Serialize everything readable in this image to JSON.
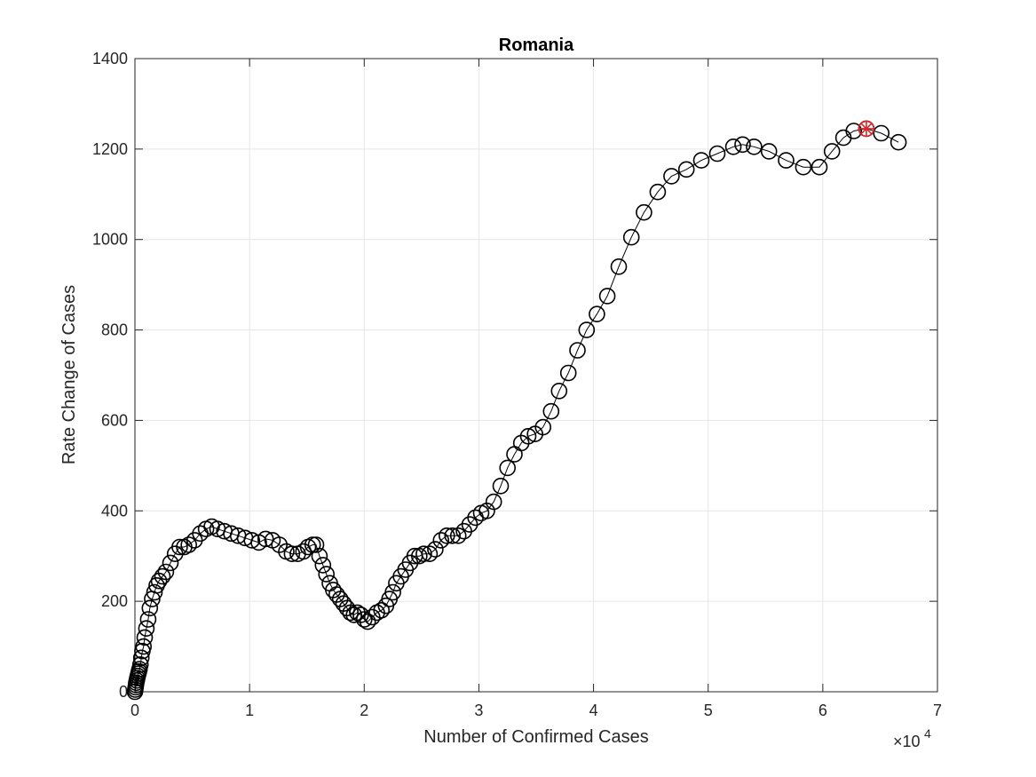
{
  "chart_data": {
    "type": "scatter",
    "title": "Romania",
    "xlabel": "Number of Confirmed Cases",
    "ylabel": "Rate Change of Cases",
    "x_multiplier": "×10",
    "x_multiplier_exp": "4",
    "xlim": [
      0,
      70000
    ],
    "ylim": [
      0,
      1400
    ],
    "xticks": [
      0,
      10000,
      20000,
      30000,
      40000,
      50000,
      60000,
      70000
    ],
    "xtick_labels": [
      "0",
      "1",
      "2",
      "3",
      "4",
      "5",
      "6",
      "7"
    ],
    "yticks": [
      0,
      200,
      400,
      600,
      800,
      1000,
      1200,
      1400
    ],
    "ytick_labels": [
      "0",
      "200",
      "400",
      "600",
      "800",
      "1000",
      "1200",
      "1400"
    ],
    "grid": true,
    "colors": {
      "series": "#000000",
      "highlight": "#d62728"
    },
    "series": [
      {
        "marker": "circle",
        "line": true,
        "x": [
          0,
          30,
          60,
          90,
          120,
          160,
          200,
          250,
          300,
          350,
          400,
          480,
          560,
          650,
          750,
          850,
          1000,
          1150,
          1300,
          1500,
          1700,
          1900,
          2100,
          2400,
          2700,
          3100,
          3500,
          3900,
          4300,
          4700,
          5200,
          5700,
          6200,
          6700,
          7200,
          7800,
          8400,
          9000,
          9600,
          10200,
          10800,
          11400,
          12000,
          12600,
          13200,
          13700,
          14200,
          14700,
          15100,
          15500,
          15800,
          16100,
          16400,
          16700,
          17000,
          17300,
          17600,
          17900,
          18200,
          18500,
          18800,
          19100,
          19400,
          19700,
          20000,
          20300,
          20700,
          21100,
          21500,
          21900,
          22200,
          22500,
          22800,
          23200,
          23600,
          24000,
          24400,
          24800,
          25200,
          25700,
          26200,
          26700,
          27200,
          27700,
          28200,
          28700,
          29200,
          29700,
          30200,
          30700,
          31300,
          31900,
          32500,
          33100,
          33700,
          34300,
          34900,
          35600,
          36300,
          37000,
          37800,
          38600,
          39400,
          40300,
          41200,
          42200,
          43300,
          44400,
          45600,
          46800,
          48100,
          49400,
          50800,
          52200,
          53000,
          54000,
          55300,
          56800,
          58300,
          59700,
          60800,
          61800,
          62700,
          63800,
          65100,
          66600
        ],
        "y": [
          0,
          5,
          10,
          15,
          20,
          25,
          30,
          35,
          40,
          45,
          50,
          60,
          75,
          90,
          100,
          120,
          140,
          160,
          185,
          205,
          220,
          235,
          245,
          255,
          265,
          285,
          305,
          320,
          320,
          325,
          335,
          350,
          360,
          365,
          360,
          355,
          350,
          345,
          340,
          335,
          330,
          338,
          335,
          325,
          310,
          305,
          305,
          310,
          320,
          325,
          325,
          300,
          280,
          260,
          240,
          225,
          215,
          205,
          195,
          185,
          175,
          170,
          175,
          170,
          160,
          155,
          165,
          175,
          180,
          190,
          205,
          220,
          240,
          255,
          270,
          285,
          300,
          300,
          305,
          305,
          315,
          335,
          345,
          345,
          345,
          355,
          370,
          385,
          395,
          400,
          420,
          455,
          495,
          525,
          550,
          565,
          570,
          585,
          620,
          665,
          705,
          755,
          800,
          835,
          875,
          940,
          1005,
          1060,
          1105,
          1140,
          1155,
          1175,
          1190,
          1205,
          1210,
          1205,
          1195,
          1175,
          1160,
          1160,
          1195,
          1225,
          1240,
          1245,
          1235,
          1215
        ]
      }
    ],
    "highlight_point": {
      "x": 63800,
      "y": 1245,
      "marker": "asterisk-in-circle"
    }
  }
}
